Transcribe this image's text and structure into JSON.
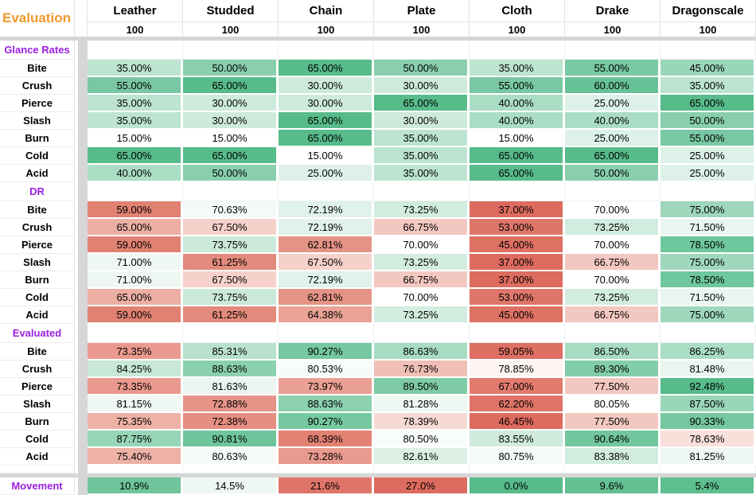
{
  "title_cell": "Evaluation",
  "colors": {
    "accent_orange": "#ef992c",
    "accent_purple": "#9a1fe0",
    "separator_gray": "#d6d6d6",
    "gridline": "#e3e3e3",
    "scale_green": "#57bb8a",
    "scale_red": "#dd6b5f"
  },
  "columns": [
    {
      "name": "Leather",
      "size": "100"
    },
    {
      "name": "Studded",
      "size": "100"
    },
    {
      "name": "Chain",
      "size": "100"
    },
    {
      "name": "Plate",
      "size": "100"
    },
    {
      "name": "Cloth",
      "size": "100"
    },
    {
      "name": "Drake",
      "size": "100"
    },
    {
      "name": "Dragonscale",
      "size": "100"
    }
  ],
  "sections": [
    {
      "label": "Glance Rates",
      "rows": [
        {
          "label": "Bite",
          "cells": [
            [
              "35.00%",
              "#bce4d0"
            ],
            [
              "50.00%",
              "#89cfae"
            ],
            [
              "65.00%",
              "#57bb8a"
            ],
            [
              "50.00%",
              "#89cfae"
            ],
            [
              "35.00%",
              "#bce4d0"
            ],
            [
              "55.00%",
              "#79c8a3"
            ],
            [
              "45.00%",
              "#9ad6b9"
            ]
          ]
        },
        {
          "label": "Crush",
          "cells": [
            [
              "55.00%",
              "#79c8a3"
            ],
            [
              "65.00%",
              "#57bb8a"
            ],
            [
              "30.00%",
              "#cdeadc"
            ],
            [
              "30.00%",
              "#cdeadc"
            ],
            [
              "55.00%",
              "#79c8a3"
            ],
            [
              "60.00%",
              "#68c297"
            ],
            [
              "35.00%",
              "#bce4d0"
            ]
          ]
        },
        {
          "label": "Pierce",
          "cells": [
            [
              "35.00%",
              "#bce4d0"
            ],
            [
              "30.00%",
              "#cdeadc"
            ],
            [
              "30.00%",
              "#cdeadc"
            ],
            [
              "65.00%",
              "#57bb8a"
            ],
            [
              "40.00%",
              "#abddc5"
            ],
            [
              "25.00%",
              "#ddf1e8"
            ],
            [
              "65.00%",
              "#57bb8a"
            ]
          ]
        },
        {
          "label": "Slash",
          "cells": [
            [
              "35.00%",
              "#bce4d0"
            ],
            [
              "30.00%",
              "#cdeadc"
            ],
            [
              "65.00%",
              "#57bb8a"
            ],
            [
              "30.00%",
              "#cdeadc"
            ],
            [
              "40.00%",
              "#abddc5"
            ],
            [
              "40.00%",
              "#abddc5"
            ],
            [
              "50.00%",
              "#89cfae"
            ]
          ]
        },
        {
          "label": "Burn",
          "cells": [
            [
              "15.00%",
              "#ffffff"
            ],
            [
              "15.00%",
              "#ffffff"
            ],
            [
              "65.00%",
              "#57bb8a"
            ],
            [
              "35.00%",
              "#bce4d0"
            ],
            [
              "15.00%",
              "#ffffff"
            ],
            [
              "25.00%",
              "#ddf1e8"
            ],
            [
              "55.00%",
              "#79c8a3"
            ]
          ]
        },
        {
          "label": "Cold",
          "cells": [
            [
              "65.00%",
              "#57bb8a"
            ],
            [
              "65.00%",
              "#57bb8a"
            ],
            [
              "15.00%",
              "#ffffff"
            ],
            [
              "35.00%",
              "#bce4d0"
            ],
            [
              "65.00%",
              "#57bb8a"
            ],
            [
              "65.00%",
              "#57bb8a"
            ],
            [
              "25.00%",
              "#ddf1e8"
            ]
          ]
        },
        {
          "label": "Acid",
          "cells": [
            [
              "40.00%",
              "#abddc5"
            ],
            [
              "50.00%",
              "#89cfae"
            ],
            [
              "25.00%",
              "#ddf1e8"
            ],
            [
              "35.00%",
              "#bce4d0"
            ],
            [
              "65.00%",
              "#57bb8a"
            ],
            [
              "50.00%",
              "#89cfae"
            ],
            [
              "25.00%",
              "#ddf1e8"
            ]
          ]
        }
      ]
    },
    {
      "label": "DR",
      "rows": [
        {
          "label": "Bite",
          "cells": [
            [
              "59.00%",
              "#e08172"
            ],
            [
              "70.63%",
              "#f4faf7"
            ],
            [
              "72.19%",
              "#e0f2e9"
            ],
            [
              "73.25%",
              "#d2ecdf"
            ],
            [
              "37.00%",
              "#dd6b5f"
            ],
            [
              "70.00%",
              "#ffffff"
            ],
            [
              "75.00%",
              "#9fd7bc"
            ]
          ]
        },
        {
          "label": "Crush",
          "cells": [
            [
              "65.00%",
              "#ecafa3"
            ],
            [
              "67.50%",
              "#f5d1ca"
            ],
            [
              "72.19%",
              "#e0f2e9"
            ],
            [
              "66.75%",
              "#f3c8c1"
            ],
            [
              "53.00%",
              "#df766a"
            ],
            [
              "73.25%",
              "#d2ecdf"
            ],
            [
              "71.50%",
              "#e9f6ef"
            ]
          ]
        },
        {
          "label": "Pierce",
          "cells": [
            [
              "59.00%",
              "#e08172"
            ],
            [
              "73.75%",
              "#cbe9da"
            ],
            [
              "62.81%",
              "#e59385"
            ],
            [
              "70.00%",
              "#ffffff"
            ],
            [
              "45.00%",
              "#de7064"
            ],
            [
              "70.00%",
              "#ffffff"
            ],
            [
              "78.50%",
              "#6ec79d"
            ]
          ]
        },
        {
          "label": "Slash",
          "cells": [
            [
              "71.00%",
              "#eef7f2"
            ],
            [
              "61.25%",
              "#e28a7c"
            ],
            [
              "67.50%",
              "#f5d1ca"
            ],
            [
              "73.25%",
              "#d2ecdf"
            ],
            [
              "37.00%",
              "#dd6b5f"
            ],
            [
              "66.75%",
              "#f3c8c1"
            ],
            [
              "75.00%",
              "#9fd7bc"
            ]
          ]
        },
        {
          "label": "Burn",
          "cells": [
            [
              "71.00%",
              "#eef7f2"
            ],
            [
              "67.50%",
              "#f5d1ca"
            ],
            [
              "72.19%",
              "#e0f2e9"
            ],
            [
              "66.75%",
              "#f3c8c1"
            ],
            [
              "37.00%",
              "#dd6b5f"
            ],
            [
              "70.00%",
              "#ffffff"
            ],
            [
              "78.50%",
              "#6ec79d"
            ]
          ]
        },
        {
          "label": "Cold",
          "cells": [
            [
              "65.00%",
              "#ecafa3"
            ],
            [
              "73.75%",
              "#cbe9da"
            ],
            [
              "62.81%",
              "#e59385"
            ],
            [
              "70.00%",
              "#ffffff"
            ],
            [
              "53.00%",
              "#df766a"
            ],
            [
              "73.25%",
              "#d2ecdf"
            ],
            [
              "71.50%",
              "#e9f6ef"
            ]
          ]
        },
        {
          "label": "Acid",
          "cells": [
            [
              "59.00%",
              "#e08172"
            ],
            [
              "61.25%",
              "#e28a7c"
            ],
            [
              "64.38%",
              "#e9a295"
            ],
            [
              "73.25%",
              "#d2ecdf"
            ],
            [
              "45.00%",
              "#de7064"
            ],
            [
              "66.75%",
              "#f3c8c1"
            ],
            [
              "75.00%",
              "#9fd7bc"
            ]
          ]
        }
      ]
    },
    {
      "label": "Evaluated",
      "rows": [
        {
          "label": "Bite",
          "cells": [
            [
              "73.35%",
              "#e9998d"
            ],
            [
              "85.31%",
              "#b8e1ce"
            ],
            [
              "90.27%",
              "#76c8a0"
            ],
            [
              "86.63%",
              "#a7dbc2"
            ],
            [
              "59.05%",
              "#de6f63"
            ],
            [
              "86.50%",
              "#a8dcc2"
            ],
            [
              "86.25%",
              "#abddc5"
            ]
          ]
        },
        {
          "label": "Crush",
          "cells": [
            [
              "84.25%",
              "#c7e7d8"
            ],
            [
              "88.63%",
              "#8bd0af"
            ],
            [
              "80.53%",
              "#f7fcf9"
            ],
            [
              "76.73%",
              "#f0bfb6"
            ],
            [
              "78.85%",
              "#fdf4f3"
            ],
            [
              "89.30%",
              "#82cdaa"
            ],
            [
              "81.48%",
              "#ebf6f0"
            ]
          ]
        },
        {
          "label": "Pierce",
          "cells": [
            [
              "73.35%",
              "#e9998d"
            ],
            [
              "81.63%",
              "#e9f5ee"
            ],
            [
              "73.97%",
              "#eaa094"
            ],
            [
              "89.50%",
              "#7fcba7"
            ],
            [
              "67.00%",
              "#e17b6e"
            ],
            [
              "77.50%",
              "#f3c8c0"
            ],
            [
              "92.48%",
              "#57bb8a"
            ]
          ]
        },
        {
          "label": "Slash",
          "cells": [
            [
              "81.15%",
              "#eef7f2"
            ],
            [
              "72.88%",
              "#e69287"
            ],
            [
              "88.63%",
              "#8bd0af"
            ],
            [
              "81.28%",
              "#eef7f2"
            ],
            [
              "62.20%",
              "#df7367"
            ],
            [
              "80.05%",
              "#ffffff"
            ],
            [
              "87.50%",
              "#9ad6b9"
            ]
          ]
        },
        {
          "label": "Burn",
          "cells": [
            [
              "75.35%",
              "#edb1a6"
            ],
            [
              "72.38%",
              "#e68e82"
            ],
            [
              "90.27%",
              "#76c8a0"
            ],
            [
              "78.39%",
              "#f7d9d3"
            ],
            [
              "46.45%",
              "#dd6b5f"
            ],
            [
              "77.50%",
              "#f3c8c0"
            ],
            [
              "90.33%",
              "#75c7a0"
            ]
          ]
        },
        {
          "label": "Cold",
          "cells": [
            [
              "87.75%",
              "#98d5b7"
            ],
            [
              "90.81%",
              "#6fc59b"
            ],
            [
              "68.39%",
              "#e28172"
            ],
            [
              "80.50%",
              "#f8fcfa"
            ],
            [
              "83.55%",
              "#d0ebde"
            ],
            [
              "90.64%",
              "#71c69d"
            ],
            [
              "78.63%",
              "#f9e0db"
            ]
          ]
        },
        {
          "label": "Acid",
          "cells": [
            [
              "75.40%",
              "#edb1a6"
            ],
            [
              "80.63%",
              "#f6fbf8"
            ],
            [
              "73.28%",
              "#e99a8e"
            ],
            [
              "82.61%",
              "#dcf0e6"
            ],
            [
              "80.75%",
              "#f5faf7"
            ],
            [
              "83.38%",
              "#d2ecdf"
            ],
            [
              "81.25%",
              "#eef7f2"
            ]
          ]
        }
      ]
    }
  ],
  "movement": {
    "label": "Movement",
    "cells": [
      [
        "10.9%",
        "#6ec59b"
      ],
      [
        "14.5%",
        "#eef7f2"
      ],
      [
        "21.6%",
        "#df7568"
      ],
      [
        "27.0%",
        "#dd6b5f"
      ],
      [
        "0.0%",
        "#57bb8a"
      ],
      [
        "9.6%",
        "#63c093"
      ],
      [
        "5.4%",
        "#5dbe8e"
      ]
    ]
  }
}
